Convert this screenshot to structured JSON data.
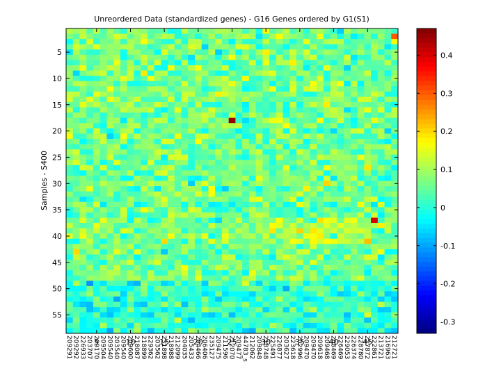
{
  "chart_data": {
    "type": "heatmap",
    "title": "Unreordered Data (standardized genes) - G16 Genes ordered by G1(S1)",
    "xlabel": "",
    "ylabel": "Samples - S400",
    "n_rows": 58,
    "n_cols": 49,
    "x_ticks": [
      5,
      10,
      15,
      20,
      25,
      30,
      35,
      40,
      45
    ],
    "y_ticks": [
      5,
      10,
      15,
      20,
      25,
      30,
      35,
      40,
      45,
      50,
      55
    ],
    "x_gene_labels": [
      "209291",
      "209292",
      "226933",
      "203707",
      "209170",
      "209504",
      "209540",
      "203540",
      "209540",
      "209600",
      "218087",
      "218899",
      "229362",
      "203562",
      "231898",
      "218988",
      "212099",
      "204035",
      "205433",
      "204466",
      "206406",
      "235127",
      "209475",
      "211596",
      "212070",
      "209477",
      "44783_s",
      "212062",
      "209848",
      "218748",
      "225491",
      "226877",
      "203627",
      "223618",
      "202996",
      "209470",
      "209470",
      "209618",
      "209468",
      "208469",
      "226469",
      "229053",
      "226374",
      "228780",
      "227872",
      "222861",
      "213721",
      "216963",
      "212721"
    ],
    "colorbar": {
      "min": -0.33,
      "max": 0.47,
      "ticks": [
        -0.3,
        -0.2,
        -0.1,
        0,
        0.1,
        0.2,
        0.3,
        0.4
      ],
      "tick_labels": [
        "-0.3",
        "-0.2",
        "-0.1",
        "0",
        "0.1",
        "0.2",
        "0.3",
        "0.4"
      ]
    },
    "colormap": "jet",
    "grid": false,
    "values_note": ""
  }
}
